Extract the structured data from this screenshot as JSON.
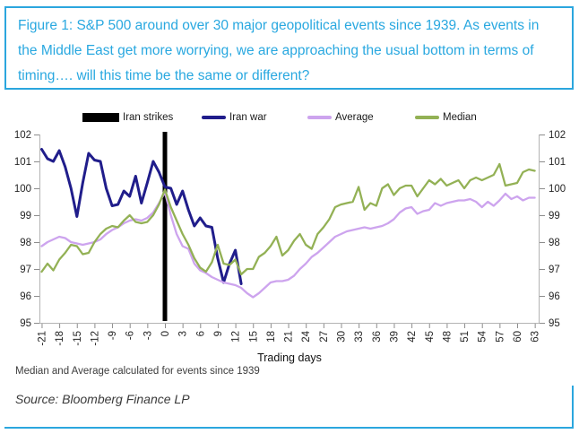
{
  "title": "Figure 1: S&P 500 around over 30 major geopolitical events since 1939. As events in the Middle East get more worrying, we are approaching the usual bottom in terms of timing…. will this time be the same or different?",
  "footnote": "Median and Average calculated for events since 1939",
  "source": "Source: Bloomberg Finance LP",
  "colors": {
    "frame_blue": "#2ba6de",
    "title_blue": "#29a8e0",
    "event_bar_black": "#000000",
    "iran_war_navy": "#201d8b",
    "average_violet": "#cda4ee",
    "median_green": "#93b155",
    "axis_gray": "#b3b3b3"
  },
  "legend": [
    {
      "label": "Iran strikes",
      "type": "bar",
      "color": "#000000"
    },
    {
      "label": "Iran war",
      "type": "line",
      "color": "#201d8b"
    },
    {
      "label": "Average",
      "type": "line",
      "color": "#cda4ee"
    },
    {
      "label": "Median",
      "type": "line",
      "color": "#93b155"
    }
  ],
  "chart_data": {
    "type": "line",
    "title": "",
    "xlabel": "Trading days",
    "ylabel": "",
    "ylim": [
      95,
      102
    ],
    "yticks": [
      95,
      96,
      97,
      98,
      99,
      100,
      101,
      102
    ],
    "xticks": [
      -21,
      -18,
      -15,
      -12,
      -9,
      -6,
      -3,
      0,
      3,
      6,
      9,
      12,
      15,
      18,
      21,
      24,
      27,
      30,
      33,
      36,
      39,
      42,
      45,
      48,
      51,
      54,
      57,
      60,
      63
    ],
    "grid": false,
    "legend_position": "top",
    "event_bar": {
      "label": "Iran strikes",
      "x": 0,
      "color": "#000000"
    },
    "series": [
      {
        "name": "Iran war",
        "color": "#201d8b",
        "stroke_width": 3,
        "x_start": -21,
        "values": [
          101.45,
          101.1,
          101.0,
          101.4,
          100.8,
          100.0,
          98.95,
          100.2,
          101.3,
          101.05,
          101.0,
          100.0,
          99.35,
          99.4,
          99.9,
          99.7,
          100.45,
          99.45,
          100.2,
          101.0,
          100.6,
          100.05,
          100.0,
          99.4,
          99.9,
          99.2,
          98.6,
          98.9,
          98.6,
          98.55,
          97.4,
          96.5,
          97.2,
          97.7,
          96.45
        ]
      },
      {
        "name": "Average",
        "color": "#cda4ee",
        "stroke_width": 2.3,
        "x_start": -21,
        "values": [
          97.85,
          98.0,
          98.1,
          98.2,
          98.15,
          98.0,
          97.95,
          97.9,
          97.95,
          98.0,
          98.1,
          98.3,
          98.45,
          98.55,
          98.7,
          98.8,
          98.85,
          98.8,
          98.9,
          99.1,
          99.45,
          99.85,
          99.0,
          98.3,
          97.85,
          97.75,
          97.2,
          96.95,
          96.85,
          96.7,
          96.6,
          96.5,
          96.45,
          96.4,
          96.3,
          96.1,
          95.95,
          96.1,
          96.3,
          96.5,
          96.55,
          96.55,
          96.6,
          96.75,
          97.0,
          97.2,
          97.45,
          97.6,
          97.8,
          98.0,
          98.2,
          98.3,
          98.4,
          98.45,
          98.5,
          98.55,
          98.5,
          98.55,
          98.6,
          98.7,
          98.85,
          99.1,
          99.25,
          99.3,
          99.05,
          99.15,
          99.2,
          99.45,
          99.35,
          99.45,
          99.5,
          99.55,
          99.55,
          99.6,
          99.5,
          99.3,
          99.5,
          99.35,
          99.55,
          99.8,
          99.6,
          99.7,
          99.55,
          99.65,
          99.65
        ]
      },
      {
        "name": "Median",
        "color": "#93b155",
        "stroke_width": 2.3,
        "x_start": -21,
        "values": [
          96.9,
          97.2,
          96.95,
          97.35,
          97.6,
          97.9,
          97.85,
          97.55,
          97.6,
          98.0,
          98.3,
          98.5,
          98.6,
          98.55,
          98.8,
          99.0,
          98.75,
          98.7,
          98.75,
          99.0,
          99.4,
          99.95,
          99.3,
          98.8,
          98.3,
          97.9,
          97.4,
          97.05,
          96.9,
          97.25,
          97.9,
          97.2,
          97.15,
          97.35,
          96.8,
          97.0,
          97.0,
          97.45,
          97.6,
          97.85,
          98.2,
          97.5,
          97.7,
          98.05,
          98.3,
          97.9,
          97.75,
          98.3,
          98.55,
          98.85,
          99.3,
          99.4,
          99.45,
          99.5,
          100.05,
          99.2,
          99.45,
          99.35,
          100.0,
          100.15,
          99.75,
          100.0,
          100.1,
          100.1,
          99.7,
          100.0,
          100.3,
          100.15,
          100.35,
          100.1,
          100.2,
          100.3,
          100.0,
          100.3,
          100.4,
          100.3,
          100.4,
          100.5,
          100.9,
          100.1,
          100.15,
          100.2,
          100.6,
          100.7,
          100.65
        ]
      }
    ]
  }
}
